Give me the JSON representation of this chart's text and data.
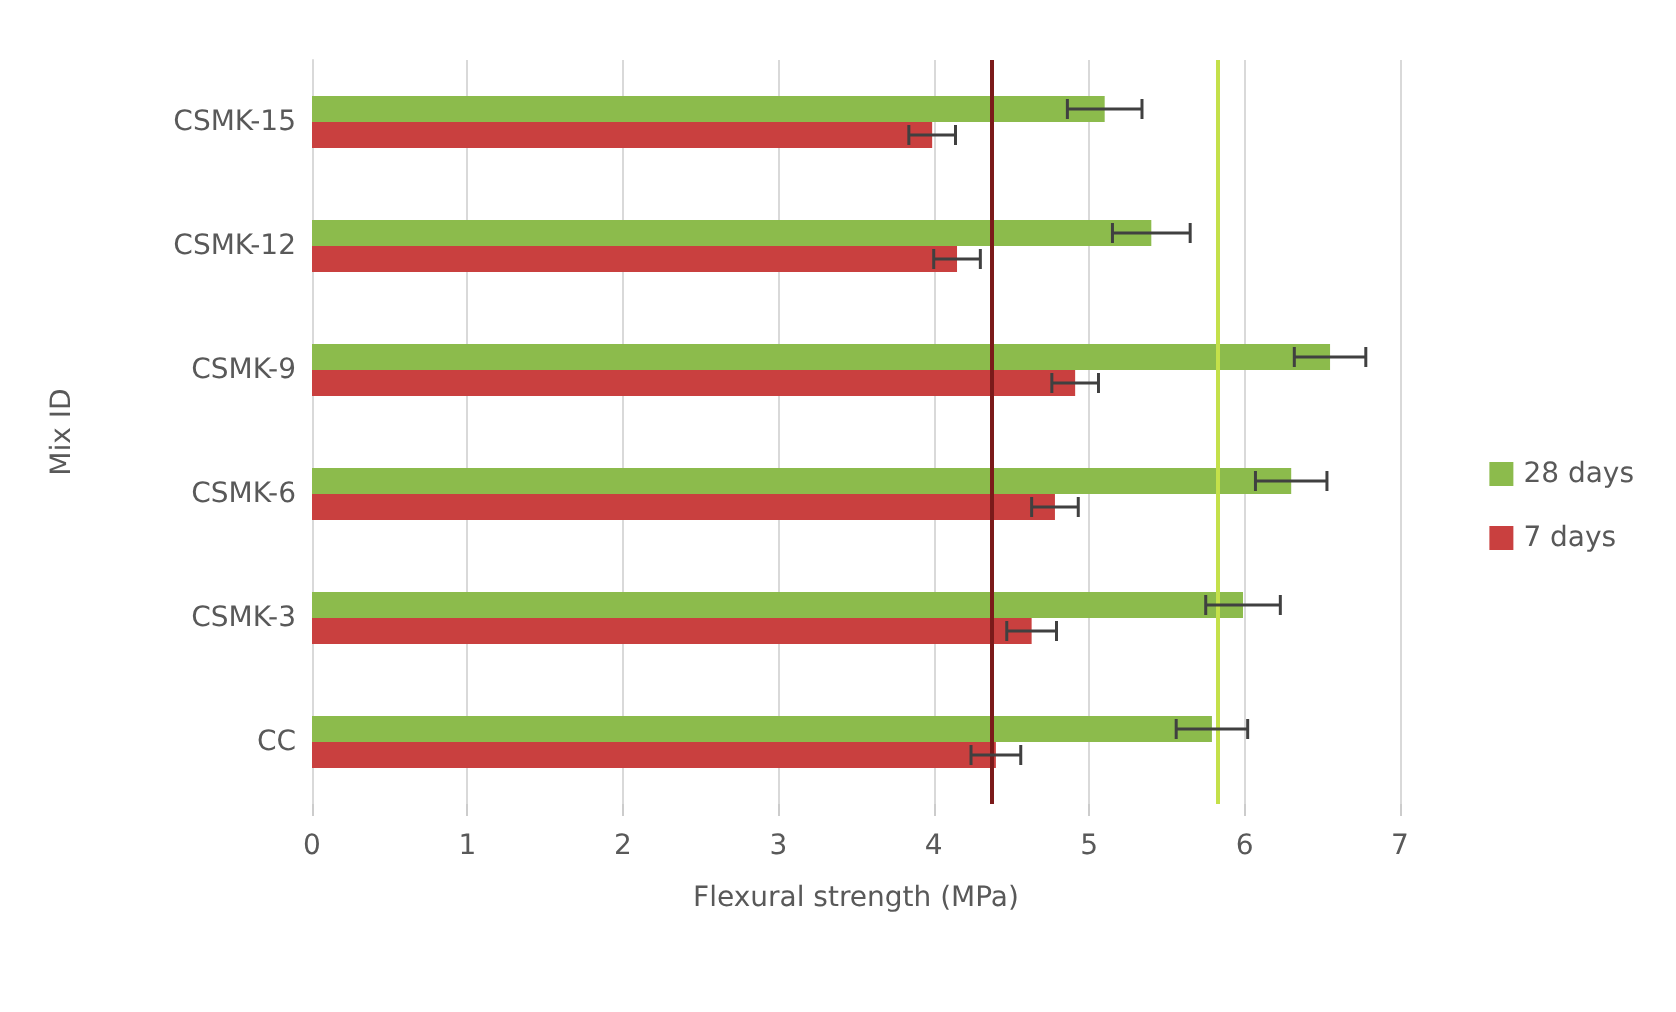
{
  "chart_data": {
    "type": "bar",
    "orientation": "horizontal",
    "xlabel": "Flexural strength (MPa)",
    "ylabel": "Mix ID",
    "categories": [
      "CSMK-15",
      "CSMK-12",
      "CSMK-9",
      "CSMK-6",
      "CSMK-3",
      "CC"
    ],
    "series": [
      {
        "name": "28 days",
        "color": "#8cbb4c",
        "values": [
          5.1,
          5.4,
          6.55,
          6.3,
          5.99,
          5.79
        ],
        "errors": [
          0.24,
          0.25,
          0.23,
          0.23,
          0.24,
          0.23
        ]
      },
      {
        "name": "7 days",
        "color": "#c9403f",
        "values": [
          3.99,
          4.15,
          4.91,
          4.78,
          4.63,
          4.4
        ],
        "errors": [
          0.15,
          0.15,
          0.15,
          0.15,
          0.16,
          0.16
        ]
      }
    ],
    "xlim": [
      0,
      7
    ],
    "xticks": [
      0,
      1,
      2,
      3,
      4,
      5,
      6,
      7
    ],
    "ref_lines": [
      {
        "axis": "x",
        "value": 4.37,
        "color": "#7b1a1a"
      },
      {
        "axis": "x",
        "value": 5.83,
        "color": "#c4e04a"
      }
    ],
    "grid": "x",
    "legend": "right"
  }
}
